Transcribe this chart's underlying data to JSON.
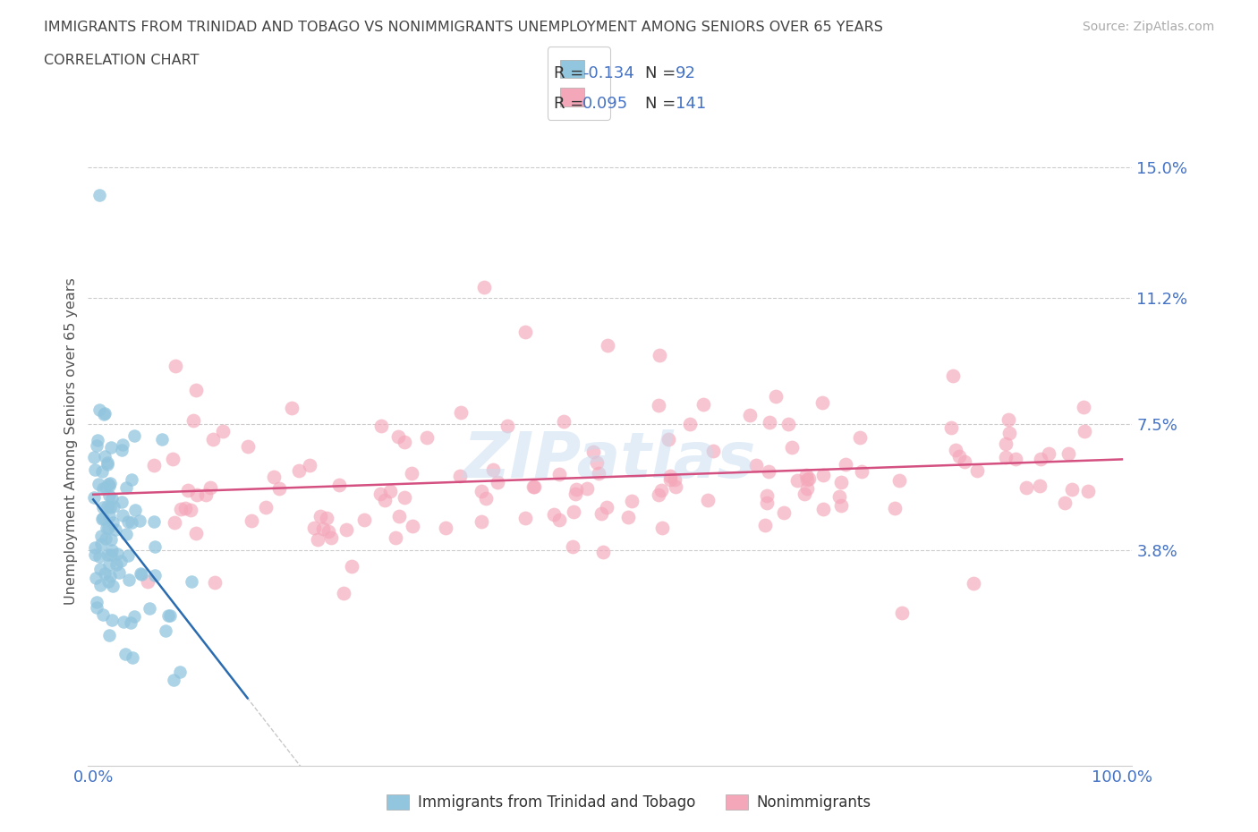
{
  "title_line1": "IMMIGRANTS FROM TRINIDAD AND TOBAGO VS NONIMMIGRANTS UNEMPLOYMENT AMONG SENIORS OVER 65 YEARS",
  "title_line2": "CORRELATION CHART",
  "source_text": "Source: ZipAtlas.com",
  "ylabel": "Unemployment Among Seniors over 65 years",
  "xlim": [
    0.0,
    100.0
  ],
  "ylim": [
    0.0,
    15.5
  ],
  "ytick_vals": [
    3.8,
    7.5,
    11.2,
    15.0
  ],
  "ytick_labels": [
    "3.8%",
    "7.5%",
    "11.2%",
    "15.0%"
  ],
  "xtick_vals": [
    0.0,
    100.0
  ],
  "xtick_labels": [
    "0.0%",
    "100.0%"
  ],
  "R1": -0.134,
  "N1": 92,
  "R2": 0.095,
  "N2": 141,
  "color_blue": "#92C5DE",
  "color_pink": "#F4A7B9",
  "color_trend_blue": "#2B6CB0",
  "color_trend_pink": "#D45080",
  "color_dash": "#BBBBBB",
  "color_title": "#444444",
  "color_tick_labels": "#4472C4",
  "color_source": "#AAAAAA",
  "color_ylabel": "#555555",
  "color_grid": "#CCCCCC",
  "watermark_color": "#C8DCF0",
  "watermark_text": "ZIPatlas",
  "legend_label1": "Immigrants from Trinidad and Tobago",
  "legend_label2": "Nonimmigrants"
}
